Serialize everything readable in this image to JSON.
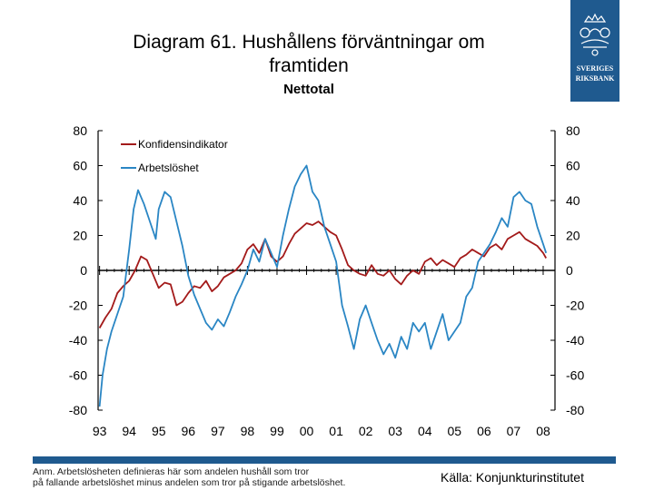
{
  "slide": {
    "title_line1": "Diagram 61. Hushållens förväntningar om",
    "title_line2": "framtiden",
    "subtitle": "Nettotal",
    "logo_text_line1": "SVERIGES",
    "logo_text_line2": "RIKSBANK",
    "note_line1": "Anm. Arbetslösheten definieras här som andelen hushåll som tror",
    "note_line2": "på fallande arbetslöshet minus andelen som tror på stigande arbetslöshet.",
    "source": "Källa: Konjunkturinstitutet"
  },
  "chart_data": {
    "type": "line",
    "title": "Diagram 61. Hushållens förväntningar om framtiden",
    "subtitle": "Nettotal",
    "x_label_values": [
      1993,
      1994,
      1995,
      1996,
      1997,
      1998,
      1999,
      2000,
      2001,
      2002,
      2003,
      2004,
      2005,
      2006,
      2007,
      2008
    ],
    "x_tick_labels": [
      "93",
      "94",
      "95",
      "96",
      "97",
      "98",
      "99",
      "00",
      "01",
      "02",
      "03",
      "04",
      "05",
      "06",
      "07",
      "08"
    ],
    "xlim": [
      1992.95,
      2008.4
    ],
    "ylim": [
      -80,
      80
    ],
    "y_ticks": [
      -80,
      -60,
      -40,
      -20,
      0,
      20,
      40,
      60,
      80
    ],
    "y_tick_labels": [
      "-80",
      "-60",
      "-40",
      "-20",
      "0",
      "20",
      "40",
      "60",
      "80"
    ],
    "right_axis_same_scale": true,
    "grid": false,
    "legend": {
      "position": "top-left"
    },
    "colors": {
      "confidence": "#a31a1a",
      "unemployment": "#2a86c4",
      "axes": "#000000"
    },
    "series": [
      {
        "name": "Konfidensindikator",
        "x": [
          1993.0,
          1993.2,
          1993.4,
          1993.6,
          1993.8,
          1994.0,
          1994.2,
          1994.4,
          1994.6,
          1994.8,
          1995.0,
          1995.2,
          1995.4,
          1995.6,
          1995.8,
          1996.0,
          1996.2,
          1996.4,
          1996.6,
          1996.8,
          1997.0,
          1997.2,
          1997.4,
          1997.6,
          1997.8,
          1998.0,
          1998.2,
          1998.4,
          1998.6,
          1998.8,
          1999.0,
          1999.2,
          1999.4,
          1999.6,
          1999.8,
          2000.0,
          2000.2,
          2000.4,
          2000.6,
          2000.8,
          2001.0,
          2001.2,
          2001.4,
          2001.6,
          2001.8,
          2002.0,
          2002.2,
          2002.4,
          2002.6,
          2002.8,
          2003.0,
          2003.2,
          2003.4,
          2003.6,
          2003.8,
          2004.0,
          2004.2,
          2004.4,
          2004.6,
          2004.8,
          2005.0,
          2005.2,
          2005.4,
          2005.6,
          2005.8,
          2006.0,
          2006.2,
          2006.4,
          2006.6,
          2006.8,
          2007.0,
          2007.2,
          2007.4,
          2007.6,
          2007.8,
          2008.0,
          2008.1
        ],
        "values": [
          -33,
          -27,
          -22,
          -13,
          -9,
          -6,
          0,
          8,
          6,
          -2,
          -10,
          -7,
          -8,
          -20,
          -18,
          -13,
          -9,
          -10,
          -6,
          -12,
          -9,
          -4,
          -2,
          0,
          4,
          12,
          15,
          10,
          18,
          8,
          5,
          8,
          15,
          21,
          24,
          27,
          26,
          28,
          25,
          22,
          20,
          12,
          3,
          0,
          -2,
          -3,
          3,
          -2,
          -3,
          0,
          -5,
          -8,
          -3,
          0,
          -2,
          5,
          7,
          3,
          6,
          4,
          2,
          7,
          9,
          12,
          10,
          8,
          13,
          15,
          12,
          18,
          20,
          22,
          18,
          16,
          14,
          10,
          7
        ]
      },
      {
        "name": "Arbetslöshet",
        "x": [
          1993.0,
          1993.1,
          1993.25,
          1993.4,
          1993.6,
          1993.8,
          1994.0,
          1994.15,
          1994.3,
          1994.5,
          1994.7,
          1994.9,
          1995.0,
          1995.2,
          1995.4,
          1995.6,
          1995.8,
          1996.0,
          1996.2,
          1996.4,
          1996.6,
          1996.8,
          1997.0,
          1997.2,
          1997.4,
          1997.6,
          1997.8,
          1998.0,
          1998.2,
          1998.4,
          1998.6,
          1998.8,
          1999.0,
          1999.2,
          1999.4,
          1999.6,
          1999.8,
          2000.0,
          2000.2,
          2000.4,
          2000.6,
          2000.8,
          2001.0,
          2001.2,
          2001.4,
          2001.6,
          2001.8,
          2002.0,
          2002.2,
          2002.4,
          2002.6,
          2002.8,
          2003.0,
          2003.2,
          2003.4,
          2003.6,
          2003.8,
          2004.0,
          2004.2,
          2004.4,
          2004.6,
          2004.8,
          2005.0,
          2005.2,
          2005.4,
          2005.6,
          2005.8,
          2006.0,
          2006.2,
          2006.4,
          2006.6,
          2006.8,
          2007.0,
          2007.2,
          2007.4,
          2007.6,
          2007.8,
          2008.0,
          2008.1
        ],
        "values": [
          -78,
          -60,
          -45,
          -35,
          -25,
          -15,
          12,
          35,
          46,
          38,
          28,
          18,
          35,
          45,
          42,
          28,
          14,
          -3,
          -14,
          -22,
          -30,
          -34,
          -28,
          -32,
          -24,
          -15,
          -8,
          0,
          12,
          5,
          18,
          10,
          2,
          20,
          35,
          48,
          55,
          60,
          45,
          40,
          25,
          15,
          5,
          -20,
          -32,
          -45,
          -28,
          -20,
          -30,
          -40,
          -48,
          -42,
          -50,
          -38,
          -45,
          -30,
          -35,
          -30,
          -45,
          -35,
          -25,
          -40,
          -35,
          -30,
          -15,
          -10,
          5,
          10,
          15,
          22,
          30,
          25,
          42,
          45,
          40,
          38,
          25,
          15,
          10
        ]
      }
    ]
  }
}
